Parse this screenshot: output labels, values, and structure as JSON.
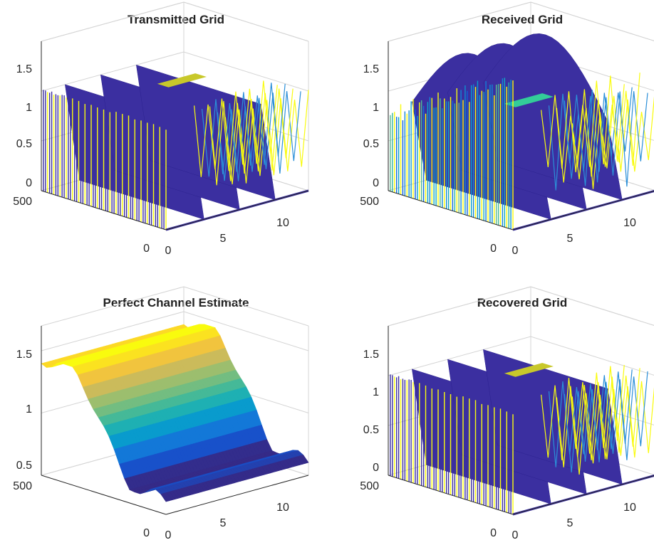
{
  "chart_data": [
    {
      "type": "surface",
      "title": "Transmitted Grid",
      "kind": "grid",
      "zticks": [
        "0",
        "0.5",
        "1",
        "1.5"
      ],
      "zlim": [
        0,
        1.5
      ],
      "xticks": [
        "0",
        "5",
        "10"
      ],
      "xlim": [
        0,
        12
      ],
      "yticks": [
        "0",
        "500"
      ],
      "ylim": [
        0,
        600
      ],
      "peak_symbols": [
        2,
        5,
        8
      ],
      "peak_height": 1.0,
      "pilot_height": 1.0,
      "noise": 0
    },
    {
      "type": "surface",
      "title": "Received Grid",
      "kind": "grid",
      "zticks": [
        "0",
        "0.5",
        "1",
        "1.5"
      ],
      "zlim": [
        0,
        1.5
      ],
      "xticks": [
        "0",
        "5",
        "10"
      ],
      "xlim": [
        0,
        12
      ],
      "yticks": [
        "0",
        "500"
      ],
      "ylim": [
        0,
        600
      ],
      "peak_symbols": [
        2,
        5,
        8
      ],
      "peak_height": 1.5,
      "pilot_height": 0.8,
      "noise": 0.3
    },
    {
      "type": "surface",
      "title": "Perfect Channel Estimate",
      "kind": "smooth",
      "zticks": [
        "0.5",
        "1",
        "1.5"
      ],
      "zlim": [
        0.5,
        1.7
      ],
      "xticks": [
        "0",
        "5",
        "10"
      ],
      "xlim": [
        0,
        12
      ],
      "yticks": [
        "0",
        "500"
      ],
      "ylim": [
        0,
        600
      ],
      "level_high": 1.45,
      "level_low": 0.6
    },
    {
      "type": "surface",
      "title": "Recovered Grid",
      "kind": "grid",
      "zticks": [
        "0",
        "0.5",
        "1",
        "1.5"
      ],
      "zlim": [
        0,
        1.5
      ],
      "xticks": [
        "0",
        "5",
        "10"
      ],
      "xlim": [
        0,
        12
      ],
      "yticks": [
        "0",
        "500"
      ],
      "ylim": [
        0,
        600
      ],
      "peak_symbols": [
        2,
        5,
        8
      ],
      "peak_height": 1.0,
      "pilot_height": 0.95,
      "noise": 0.05
    }
  ],
  "colors": {
    "parula": [
      "#352a87",
      "#0f5cdd",
      "#1481d6",
      "#06a4ca",
      "#2eb7a4",
      "#87bf77",
      "#d1bb59",
      "#fec832",
      "#f9fb0e"
    ],
    "wire_yellow": "#f9fb0e",
    "wire_blue": "#2b8fd8",
    "surface_dark": "#3b2fa0",
    "pilot_band": "#c8c82a",
    "received_pilot_band": "#33cc99"
  }
}
